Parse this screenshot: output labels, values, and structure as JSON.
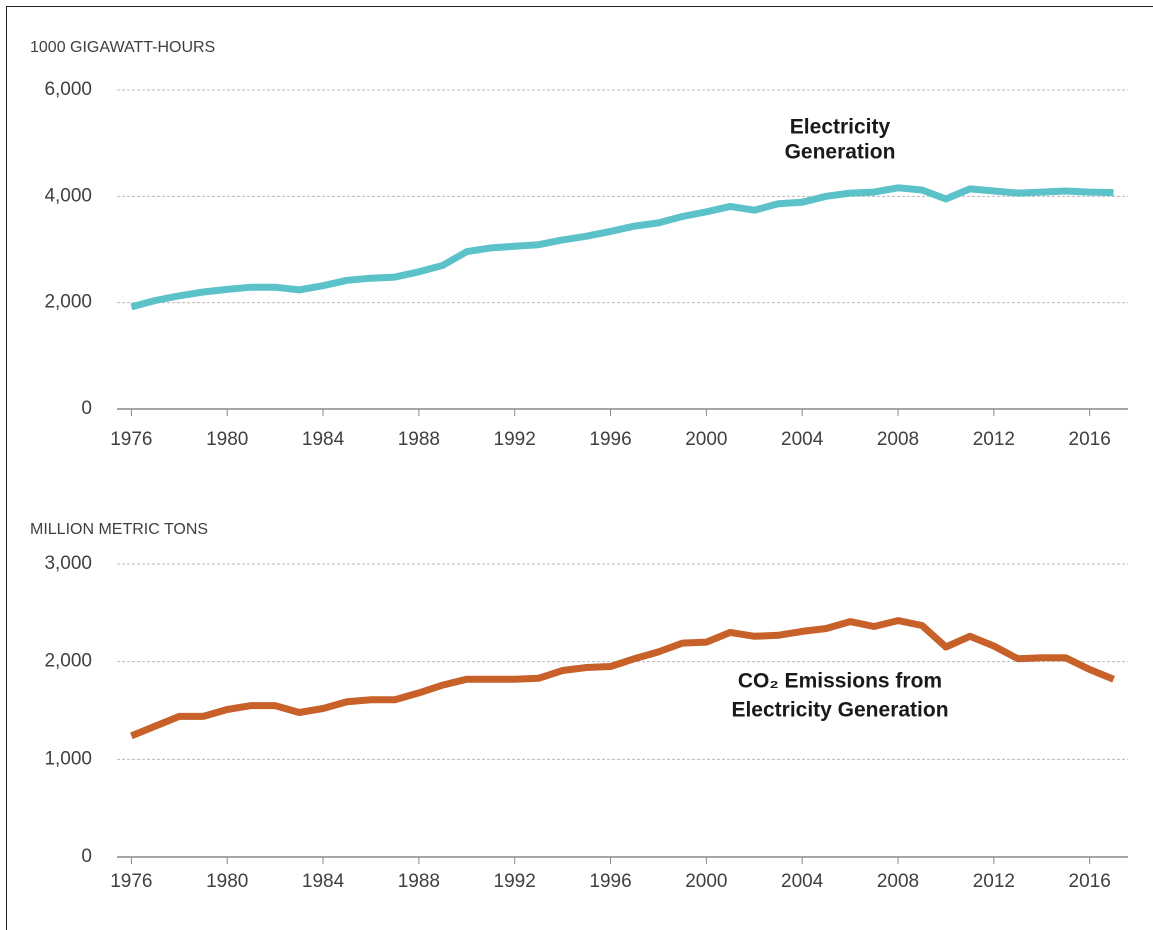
{
  "chart_data": [
    {
      "type": "line",
      "ylabel": "1000 GIGAWATT-HOURS",
      "annotation": [
        "Electricity",
        "Generation"
      ],
      "color": "#5bc2c9",
      "x": [
        1976,
        1977,
        1978,
        1979,
        1980,
        1981,
        1982,
        1983,
        1984,
        1985,
        1986,
        1987,
        1988,
        1989,
        1990,
        1991,
        1992,
        1993,
        1994,
        1995,
        1996,
        1997,
        1998,
        1999,
        2000,
        2001,
        2002,
        2003,
        2004,
        2005,
        2006,
        2007,
        2008,
        2009,
        2010,
        2011,
        2012,
        2013,
        2014,
        2015,
        2016,
        2017
      ],
      "values": [
        1920,
        2040,
        2130,
        2200,
        2250,
        2290,
        2290,
        2240,
        2320,
        2420,
        2460,
        2480,
        2580,
        2700,
        2960,
        3030,
        3060,
        3090,
        3180,
        3250,
        3340,
        3440,
        3500,
        3620,
        3710,
        3810,
        3740,
        3860,
        3890,
        4000,
        4060,
        4080,
        4160,
        4120,
        3950,
        4140,
        4100,
        4060,
        4080,
        4100,
        4080,
        4070
      ],
      "xlim": [
        1975.4,
        2017.6
      ],
      "xticks": [
        1976,
        1980,
        1984,
        1988,
        1992,
        1996,
        2000,
        2004,
        2008,
        2012,
        2016
      ],
      "ylim": [
        0,
        6000
      ],
      "yticks": [
        0,
        {
          "value": 2000,
          "label": "2,000"
        },
        {
          "value": 4000,
          "label": "4,000"
        },
        {
          "value": 6000,
          "label": "6,000"
        }
      ],
      "grid": true
    },
    {
      "type": "line",
      "ylabel": "MILLION METRIC TONS",
      "annotation": [
        "CO₂ Emissions from",
        "Electricity Generation"
      ],
      "color": "#c8602a",
      "x": [
        1976,
        1977,
        1978,
        1979,
        1980,
        1981,
        1982,
        1983,
        1984,
        1985,
        1986,
        1987,
        1988,
        1989,
        1990,
        1991,
        1992,
        1993,
        1994,
        1995,
        1996,
        1997,
        1998,
        1999,
        2000,
        2001,
        2002,
        2003,
        2004,
        2005,
        2006,
        2007,
        2008,
        2009,
        2010,
        2011,
        2012,
        2013,
        2014,
        2015,
        2016,
        2017
      ],
      "values": [
        1240,
        1340,
        1440,
        1440,
        1510,
        1550,
        1550,
        1480,
        1520,
        1590,
        1610,
        1610,
        1680,
        1760,
        1820,
        1820,
        1820,
        1830,
        1910,
        1940,
        1950,
        2030,
        2100,
        2190,
        2200,
        2300,
        2260,
        2270,
        2310,
        2340,
        2410,
        2360,
        2420,
        2370,
        2150,
        2260,
        2160,
        2030,
        2040,
        2040,
        1920,
        1820
      ],
      "xlim": [
        1975.4,
        2017.6
      ],
      "xticks": [
        1976,
        1980,
        1984,
        1988,
        1992,
        1996,
        2000,
        2004,
        2008,
        2012,
        2016
      ],
      "ylim": [
        0,
        3000
      ],
      "yticks": [
        0,
        {
          "value": 1000,
          "label": "1,000"
        },
        {
          "value": 2000,
          "label": "2,000"
        },
        {
          "value": 3000,
          "label": "3,000"
        }
      ],
      "grid": true
    }
  ]
}
